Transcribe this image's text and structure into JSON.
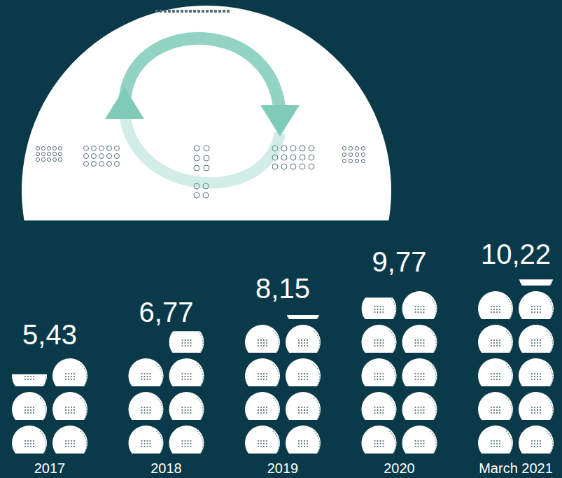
{
  "chart_data": {
    "type": "pictogram",
    "categories": [
      "2017",
      "2018",
      "2019",
      "2020",
      "March 2021"
    ],
    "values": [
      5.43,
      6.77,
      8.15,
      9.77,
      10.22
    ],
    "value_labels": [
      "5,43",
      "6,77",
      "8,15",
      "9,77",
      "10,22"
    ],
    "data_labels": true,
    "color": "#ffffff"
  }
}
